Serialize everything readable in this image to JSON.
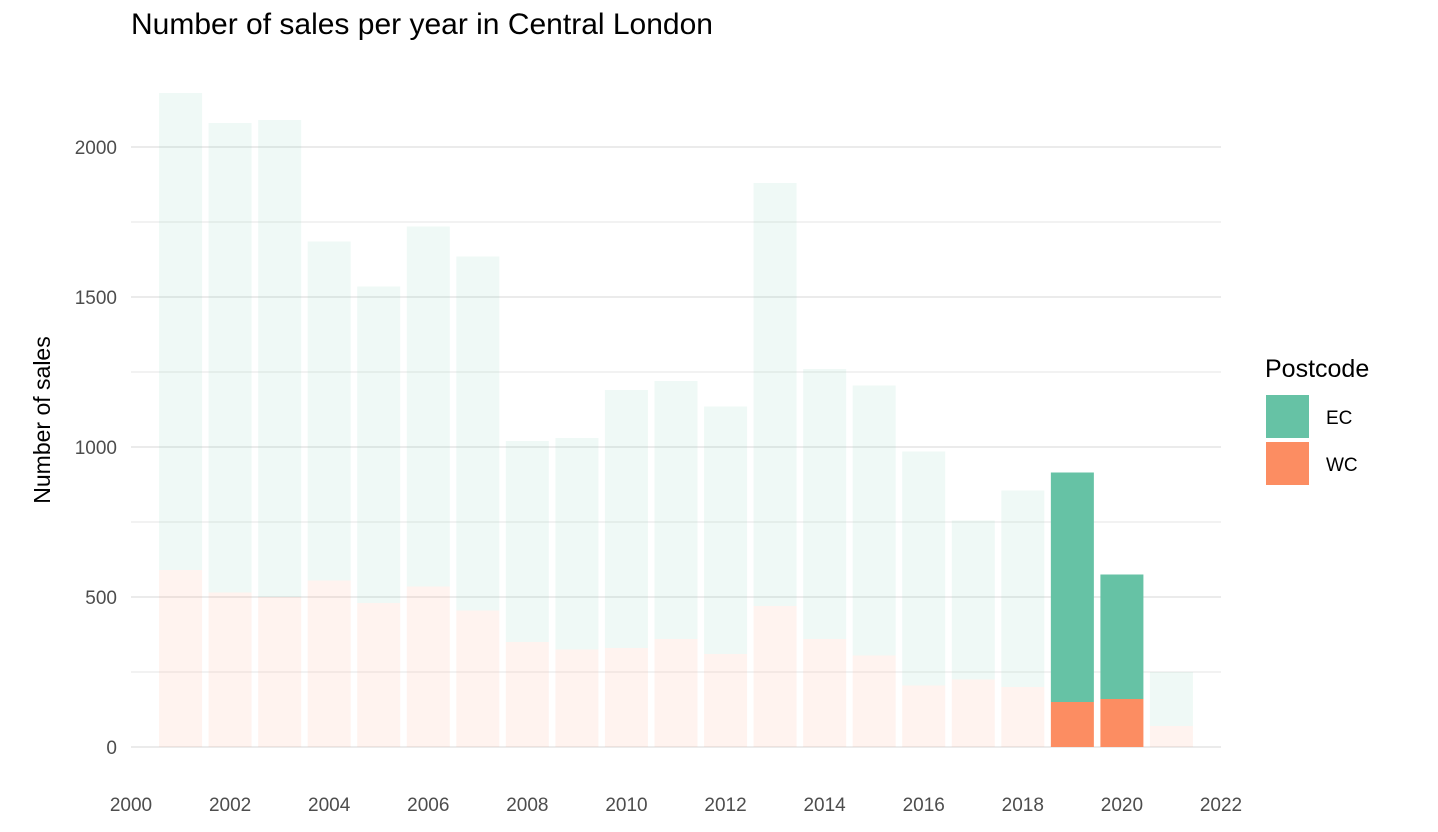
{
  "colors": {
    "EC": "#66c2a5",
    "WC": "#fc8d62",
    "grid": "#ebebeb"
  },
  "chart_data": {
    "type": "bar",
    "stacked": true,
    "title": "Number of sales per year in Central London",
    "xlabel": "",
    "ylabel": "Number of sales",
    "xlim": [
      2000,
      2022
    ],
    "ylim": [
      0,
      2200
    ],
    "x_ticks": [
      "2000",
      "2002",
      "2004",
      "2006",
      "2008",
      "2010",
      "2012",
      "2014",
      "2016",
      "2018",
      "2020",
      "2022"
    ],
    "y_ticks": [
      "0",
      "500",
      "1000",
      "1500",
      "2000"
    ],
    "highlight_years": [
      2019,
      2020
    ],
    "categories": [
      2001,
      2002,
      2003,
      2004,
      2005,
      2006,
      2007,
      2008,
      2009,
      2010,
      2011,
      2012,
      2013,
      2014,
      2015,
      2016,
      2017,
      2018,
      2019,
      2020,
      2021
    ],
    "series": [
      {
        "name": "WC",
        "values": [
          590,
          515,
          500,
          555,
          480,
          535,
          455,
          350,
          325,
          330,
          360,
          310,
          470,
          360,
          305,
          205,
          225,
          200,
          150,
          160,
          70
        ]
      },
      {
        "name": "EC",
        "values": [
          1590,
          1565,
          1590,
          1130,
          1055,
          1200,
          1180,
          670,
          705,
          860,
          860,
          825,
          1410,
          900,
          900,
          780,
          530,
          655,
          765,
          415,
          180
        ]
      }
    ],
    "legend": {
      "title": "Postcode",
      "entries": [
        "EC",
        "WC"
      ],
      "position": "right"
    }
  }
}
